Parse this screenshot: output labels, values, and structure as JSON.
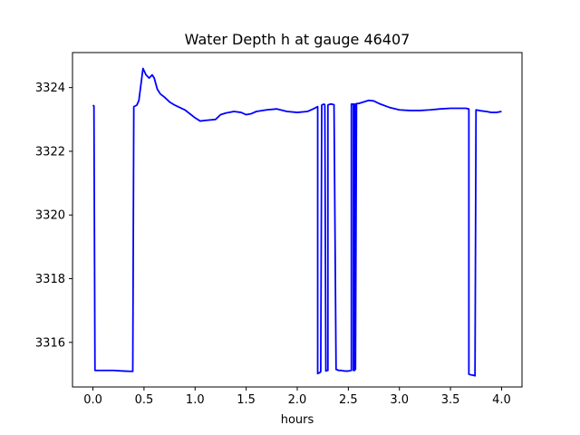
{
  "chart_data": {
    "type": "line",
    "title": "Water Depth h at gauge 46407",
    "xlabel": "hours",
    "ylabel": "",
    "xlim": [
      -0.2,
      4.2
    ],
    "ylim": [
      3314.6,
      3325.1
    ],
    "xticks": [
      0.0,
      0.5,
      1.0,
      1.5,
      2.0,
      2.5,
      3.0,
      3.5,
      4.0
    ],
    "xtick_labels": [
      "0.0",
      "0.5",
      "1.0",
      "1.5",
      "2.0",
      "2.5",
      "3.0",
      "3.5",
      "4.0"
    ],
    "yticks": [
      3316,
      3318,
      3320,
      3322,
      3324
    ],
    "ytick_labels": [
      "3316",
      "3318",
      "3320",
      "3322",
      "3324"
    ],
    "grid": false,
    "series": [
      {
        "color": "#0000ff",
        "x": [
          0.0,
          0.01,
          0.02,
          0.1,
          0.2,
          0.3,
          0.37,
          0.39,
          0.4,
          0.43,
          0.45,
          0.47,
          0.49,
          0.52,
          0.55,
          0.58,
          0.6,
          0.63,
          0.66,
          0.7,
          0.75,
          0.8,
          0.9,
          1.0,
          1.05,
          1.1,
          1.2,
          1.25,
          1.3,
          1.38,
          1.45,
          1.5,
          1.55,
          1.6,
          1.7,
          1.8,
          1.9,
          2.0,
          2.1,
          2.15,
          2.2,
          2.2,
          2.22,
          2.23,
          2.24,
          2.26,
          2.27,
          2.28,
          2.29,
          2.3,
          2.3,
          2.32,
          2.33,
          2.34,
          2.36,
          2.38,
          2.39,
          2.4,
          2.4,
          2.43,
          2.46,
          2.48,
          2.5,
          2.53,
          2.53,
          2.55,
          2.55,
          2.56,
          2.56,
          2.57,
          2.57,
          2.58,
          2.6,
          2.65,
          2.7,
          2.75,
          2.8,
          2.9,
          3.0,
          3.1,
          3.2,
          3.3,
          3.4,
          3.5,
          3.6,
          3.65,
          3.68,
          3.68,
          3.7,
          3.72,
          3.74,
          3.75,
          3.8,
          3.85,
          3.9,
          3.95,
          4.0
        ],
        "y": [
          3323.45,
          3323.42,
          3315.12,
          3315.12,
          3315.12,
          3315.1,
          3315.09,
          3315.09,
          3323.4,
          3323.45,
          3323.6,
          3324.1,
          3324.6,
          3324.4,
          3324.3,
          3324.4,
          3324.3,
          3323.95,
          3323.8,
          3323.7,
          3323.55,
          3323.45,
          3323.3,
          3323.05,
          3322.95,
          3322.97,
          3323.0,
          3323.15,
          3323.2,
          3323.25,
          3323.22,
          3323.15,
          3323.18,
          3323.25,
          3323.3,
          3323.33,
          3323.25,
          3323.22,
          3323.25,
          3323.32,
          3323.4,
          3315.02,
          3315.05,
          3315.08,
          3323.45,
          3323.48,
          3323.46,
          3315.1,
          3315.12,
          3315.12,
          3323.45,
          3323.48,
          3323.48,
          3323.48,
          3323.46,
          3315.15,
          3315.14,
          3315.13,
          3315.12,
          3315.12,
          3315.1,
          3315.1,
          3315.1,
          3315.12,
          3323.48,
          3323.48,
          3315.12,
          3315.12,
          3323.48,
          3323.48,
          3315.15,
          3323.5,
          3323.5,
          3323.55,
          3323.6,
          3323.58,
          3323.5,
          3323.38,
          3323.3,
          3323.28,
          3323.28,
          3323.3,
          3323.33,
          3323.35,
          3323.35,
          3323.35,
          3323.33,
          3315.0,
          3314.98,
          3314.97,
          3314.95,
          3323.3,
          3323.27,
          3323.25,
          3323.22,
          3323.22,
          3323.25
        ]
      }
    ]
  }
}
